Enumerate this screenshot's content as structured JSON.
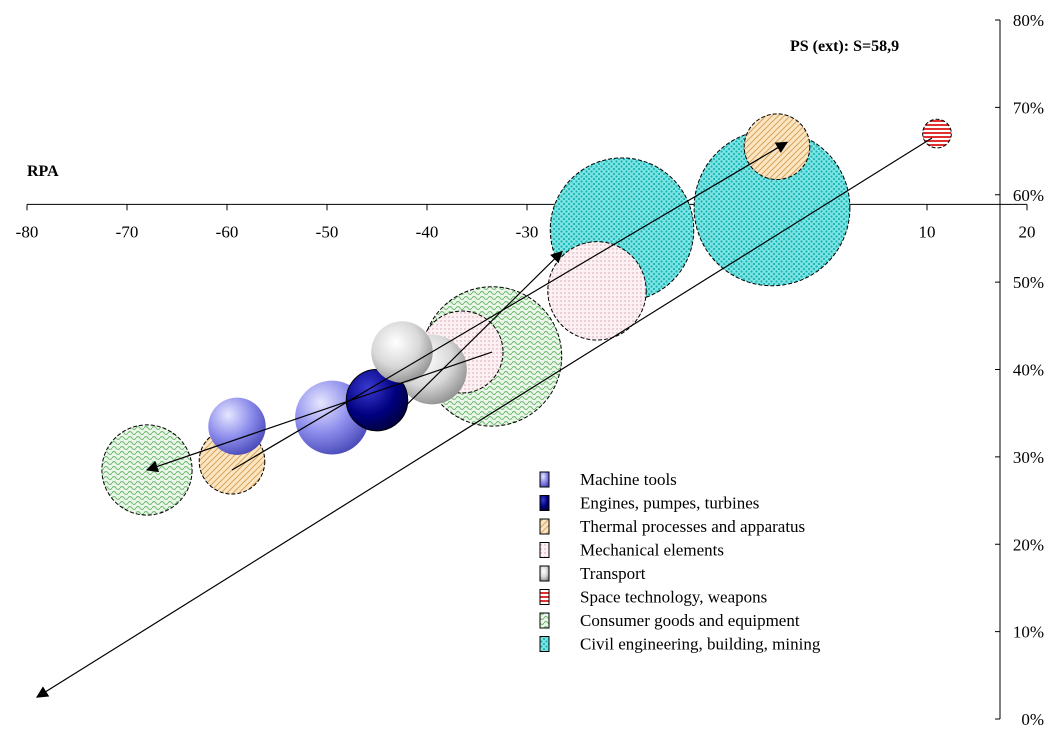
{
  "chart_data": {
    "type": "bubble",
    "title": "PS (ext): S=58,9",
    "xlabel": "RPA",
    "ylabel": "",
    "xlim": [
      -80,
      20
    ],
    "ylim": [
      0,
      80
    ],
    "x_ticks": [
      "-80",
      "-70",
      "-60",
      "-50",
      "-40",
      "-30",
      "-20",
      "-10",
      "0",
      "10",
      "20"
    ],
    "y_ticks": [
      "0%",
      "10%",
      "20%",
      "30%",
      "40%",
      "50%",
      "60%",
      "70%",
      "80%"
    ],
    "x_tick_values": [
      -80,
      -70,
      -60,
      -50,
      -40,
      -30,
      -20,
      -10,
      0,
      10,
      20
    ],
    "y_tick_values": [
      0,
      10,
      20,
      30,
      40,
      50,
      60,
      70,
      80
    ],
    "y_axis_position": "right",
    "x_axis_crosses_y": 58.9,
    "grid": false,
    "legend_position": "bottom-right",
    "series": [
      {
        "name": "Machine tools",
        "color": "#9a9af0",
        "pattern": "sphere",
        "points": [
          {
            "x": -59,
            "y": 33.5,
            "size": 7
          },
          {
            "x": -49.5,
            "y": 34.5,
            "size": 9
          }
        ]
      },
      {
        "name": "Engines, pumpes, turbines",
        "color": "#00007a",
        "pattern": "sphere",
        "points": [
          {
            "x": -45,
            "y": 36.5,
            "size": 7.5
          }
        ]
      },
      {
        "name": "Thermal processes and apparatus",
        "color": "#f2d2a0",
        "pattern": "hatch",
        "points": [
          {
            "x": -59.5,
            "y": 29.5,
            "size": 8
          },
          {
            "x": -5,
            "y": 65.5,
            "size": 8
          }
        ]
      },
      {
        "name": "Mechanical elements",
        "color": "#f7e0e6",
        "pattern": "dots",
        "points": [
          {
            "x": -36.5,
            "y": 42,
            "size": 10
          },
          {
            "x": -23,
            "y": 49,
            "size": 12
          }
        ]
      },
      {
        "name": "Transport",
        "color": "#bdbdbd",
        "pattern": "sphere",
        "points": [
          {
            "x": -39.5,
            "y": 40,
            "size": 8.5
          },
          {
            "x": -42.5,
            "y": 42,
            "size": 7.5
          }
        ]
      },
      {
        "name": "Space technology, weapons",
        "color": "#e04040",
        "pattern": "stripes",
        "points": [
          {
            "x": 11,
            "y": 67,
            "size": 3.5
          }
        ]
      },
      {
        "name": "Consumer goods and equipment",
        "color": "#9ed49e",
        "pattern": "wave",
        "points": [
          {
            "x": -68,
            "y": 28.5,
            "size": 11
          },
          {
            "x": -33.5,
            "y": 41.5,
            "size": 17
          }
        ]
      },
      {
        "name": "Civil engineering, building, mining",
        "color": "#40d0d0",
        "pattern": "check",
        "points": [
          {
            "x": -20.5,
            "y": 56,
            "size": 17.5
          },
          {
            "x": -5.5,
            "y": 58.5,
            "size": 19
          }
        ]
      }
    ],
    "arrows": [
      {
        "from": [
          -33.5,
          42
        ],
        "to": [
          -68,
          28.5
        ]
      },
      {
        "from": [
          -59.5,
          28.5
        ],
        "to": [
          -4,
          66
        ]
      },
      {
        "from": [
          -42,
          36
        ],
        "to": [
          -26.5,
          53.5
        ]
      },
      {
        "from": [
          10.5,
          66.5
        ],
        "to": [
          -79,
          2.5
        ]
      }
    ]
  }
}
